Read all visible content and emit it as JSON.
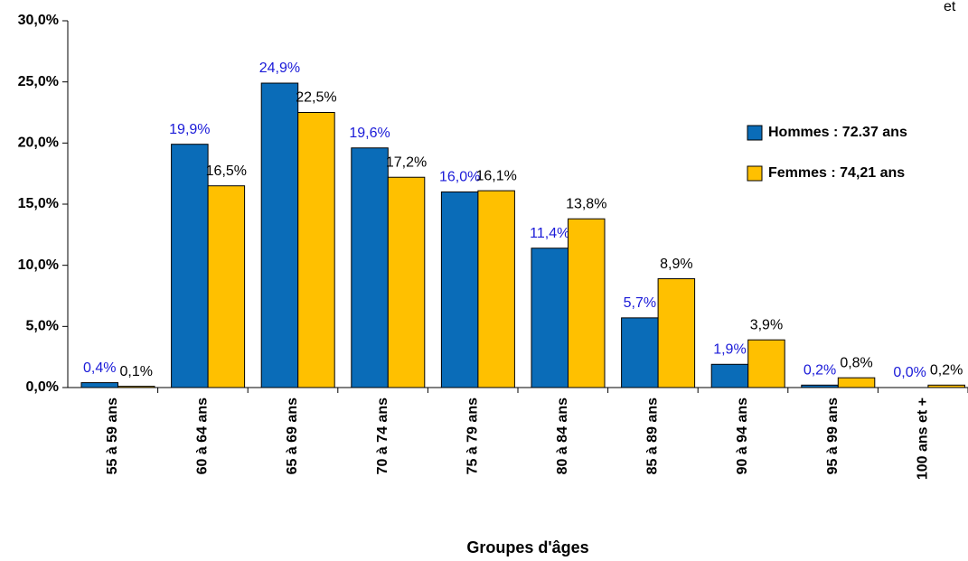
{
  "chart_data": {
    "type": "bar",
    "annotation": "et",
    "xlabel": "Groupes d'âges",
    "categories": [
      "55 à 59 ans",
      "60 à 64 ans",
      "65 à 69 ans",
      "70 à 74 ans",
      "75 à 79 ans",
      "80 à 84 ans",
      "85 à 89 ans",
      "90 à 94 ans",
      "95 à 99 ans",
      "100 ans et +"
    ],
    "series": [
      {
        "name": "Hommes : 72.37 ans",
        "color": "#0a6cb8",
        "values": [
          0.4,
          19.9,
          24.9,
          19.6,
          16.0,
          11.4,
          5.7,
          1.9,
          0.2,
          0.0
        ],
        "value_labels": [
          "0,4%",
          "19,9%",
          "24,9%",
          "19,6%",
          "16,0%",
          "11,4%",
          "5,7%",
          "1,9%",
          "0,2%",
          "0,0%"
        ]
      },
      {
        "name": "Femmes : 74,21 ans",
        "color": "#ffc000",
        "values": [
          0.1,
          16.5,
          22.5,
          17.2,
          16.1,
          13.8,
          8.9,
          3.9,
          0.8,
          0.2
        ],
        "value_labels": [
          "0,1%",
          "16,5%",
          "22,5%",
          "17,2%",
          "16,1%",
          "13,8%",
          "8,9%",
          "3,9%",
          "0,8%",
          "0,2%"
        ]
      }
    ],
    "ylim": [
      0,
      30
    ],
    "yticks": [
      {
        "value": 0,
        "label": "0,0%"
      },
      {
        "value": 5,
        "label": "5,0%"
      },
      {
        "value": 10,
        "label": "10,0%"
      },
      {
        "value": 15,
        "label": "15,0%"
      },
      {
        "value": 20,
        "label": "20,0%"
      },
      {
        "value": 25,
        "label": "25,0%"
      },
      {
        "value": 30,
        "label": "30,0%"
      }
    ],
    "legend": "right"
  }
}
